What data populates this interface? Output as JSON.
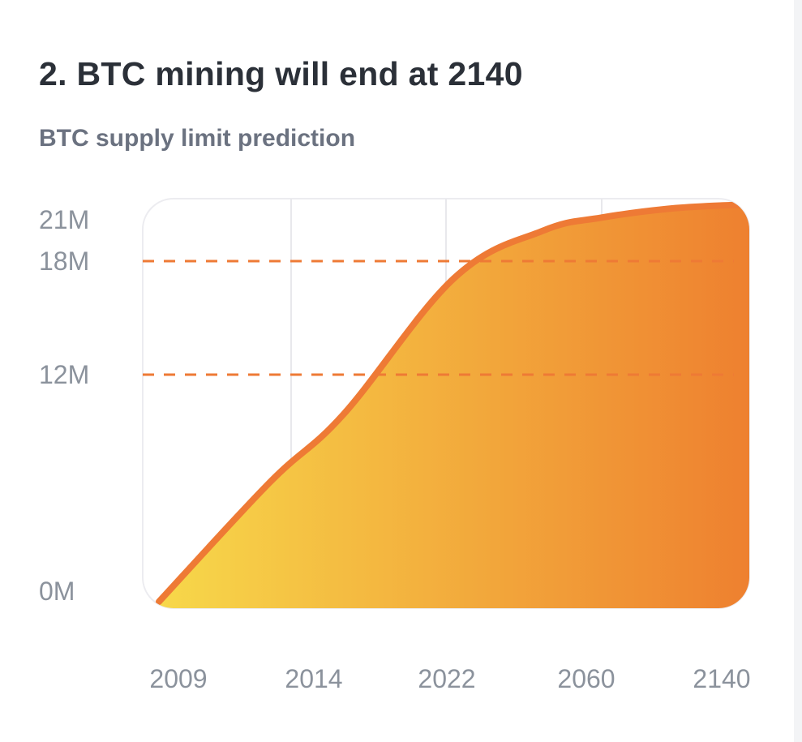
{
  "section": {
    "title": "2. BTC mining will end at 2140",
    "subtitle": "BTC supply limit prediction"
  },
  "chart_data": {
    "type": "area",
    "x_categories": [
      "2009",
      "2014",
      "2022",
      "2060",
      "2140"
    ],
    "y_ticks": [
      {
        "label": "21M",
        "value": 21
      },
      {
        "label": "18M",
        "value": 18
      },
      {
        "label": "12M",
        "value": 12
      },
      {
        "label": "0M",
        "value": 0
      }
    ],
    "series": [
      {
        "points": [
          {
            "x": 0,
            "y": 0
          },
          {
            "x": 0.75,
            "y": 6.3
          },
          {
            "x": 1.25,
            "y": 9.9
          },
          {
            "x": 2.0,
            "y": 17.1
          },
          {
            "x": 2.6,
            "y": 19.6
          },
          {
            "x": 3.0,
            "y": 20.3
          },
          {
            "x": 3.5,
            "y": 20.8
          },
          {
            "x": 4.0,
            "y": 21.0
          }
        ]
      }
    ],
    "reference_lines": [
      18,
      12
    ],
    "y_range": [
      0,
      21
    ],
    "grid": "vertical",
    "colors": {
      "line": "#ee7a35",
      "fill_start": "#f7d84a",
      "fill_end": "#ee7f2f",
      "grid": "#e8e8ec",
      "tick_text": "#8b929c"
    }
  }
}
